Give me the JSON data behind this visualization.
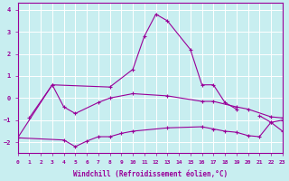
{
  "xlabel": "Windchill (Refroidissement éolien,°C)",
  "background_color": "#c8eef0",
  "line_color": "#990099",
  "grid_color": "#ffffff",
  "xlim": [
    0,
    23
  ],
  "ylim": [
    -2.5,
    4.3
  ],
  "xticks": [
    0,
    1,
    2,
    3,
    4,
    5,
    6,
    7,
    8,
    9,
    10,
    11,
    12,
    13,
    14,
    15,
    16,
    17,
    18,
    19,
    20,
    21,
    22,
    23
  ],
  "yticks": [
    -2,
    -1,
    0,
    1,
    2,
    3,
    4
  ],
  "series_connected": [
    [
      [
        1,
        -0.9
      ],
      [
        3,
        0.6
      ],
      [
        8,
        0.5
      ],
      [
        10,
        1.3
      ],
      [
        11,
        2.8
      ],
      [
        12,
        3.8
      ],
      [
        13,
        3.5
      ],
      [
        15,
        2.2
      ],
      [
        16,
        0.6
      ],
      [
        17,
        0.6
      ],
      [
        18,
        -0.2
      ],
      [
        19,
        -0.5
      ]
    ],
    [
      [
        21,
        -0.8
      ],
      [
        22,
        -1.1
      ],
      [
        23,
        -1.0
      ]
    ],
    [
      [
        0,
        -1.8
      ],
      [
        3,
        0.6
      ],
      [
        4,
        -0.4
      ],
      [
        5,
        -0.7
      ],
      [
        7,
        -0.2
      ],
      [
        8,
        -0.0
      ],
      [
        10,
        0.2
      ],
      [
        13,
        0.1
      ],
      [
        16,
        -0.15
      ],
      [
        17,
        -0.15
      ],
      [
        19,
        -0.4
      ],
      [
        20,
        -0.5
      ],
      [
        22,
        -0.85
      ],
      [
        23,
        -0.9
      ]
    ],
    [
      [
        0,
        -1.8
      ],
      [
        4,
        -1.9
      ],
      [
        5,
        -2.2
      ],
      [
        6,
        -1.95
      ],
      [
        7,
        -1.75
      ],
      [
        8,
        -1.75
      ],
      [
        9,
        -1.6
      ],
      [
        10,
        -1.5
      ],
      [
        13,
        -1.35
      ],
      [
        16,
        -1.3
      ],
      [
        17,
        -1.4
      ],
      [
        18,
        -1.5
      ],
      [
        19,
        -1.55
      ],
      [
        20,
        -1.7
      ],
      [
        21,
        -1.75
      ],
      [
        22,
        -1.1
      ],
      [
        23,
        -1.5
      ]
    ]
  ]
}
